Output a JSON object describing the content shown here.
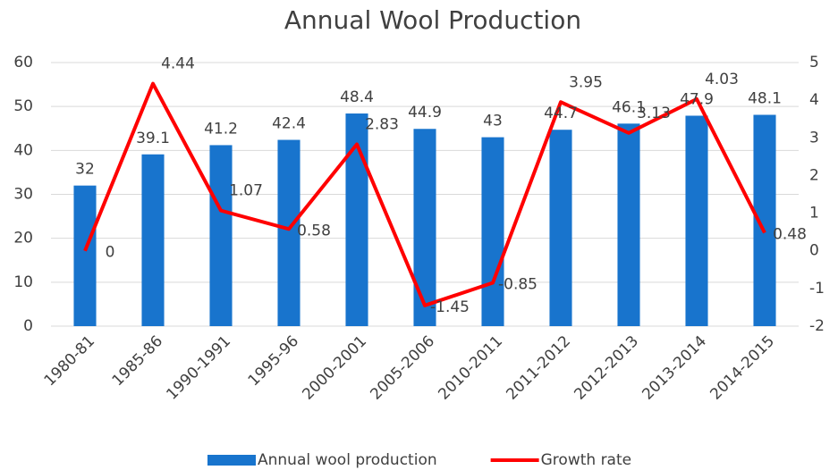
{
  "chart_data": {
    "type": "bar-line",
    "title": "Annual Wool Production",
    "categories": [
      "1980-81",
      "1985-86",
      "1990-1991",
      "1995-96",
      "2000-2001",
      "2005-2006",
      "2010-2011",
      "2011-2012",
      "2012-2013",
      "2013-2014",
      "2014-2015"
    ],
    "series": [
      {
        "name": "Annual wool production",
        "type": "bar",
        "color": "#1874cd",
        "values": [
          32,
          39.1,
          41.2,
          42.4,
          48.4,
          44.9,
          43,
          44.7,
          46.1,
          47.9,
          48.1
        ]
      },
      {
        "name": "Growth rate",
        "type": "line",
        "axis": "y2",
        "color": "#ff0000",
        "values": [
          0,
          4.44,
          1.07,
          0.58,
          2.83,
          -1.45,
          -0.85,
          3.95,
          3.13,
          4.03,
          0.48
        ]
      }
    ],
    "ylim": [
      0,
      60
    ],
    "yticks": [
      0,
      10,
      20,
      30,
      40,
      50,
      60
    ],
    "y2lim": [
      -2,
      5
    ],
    "y2ticks": [
      -2,
      -1,
      0,
      1,
      2,
      3,
      4,
      5
    ],
    "grid": true,
    "legend": "bottom"
  }
}
